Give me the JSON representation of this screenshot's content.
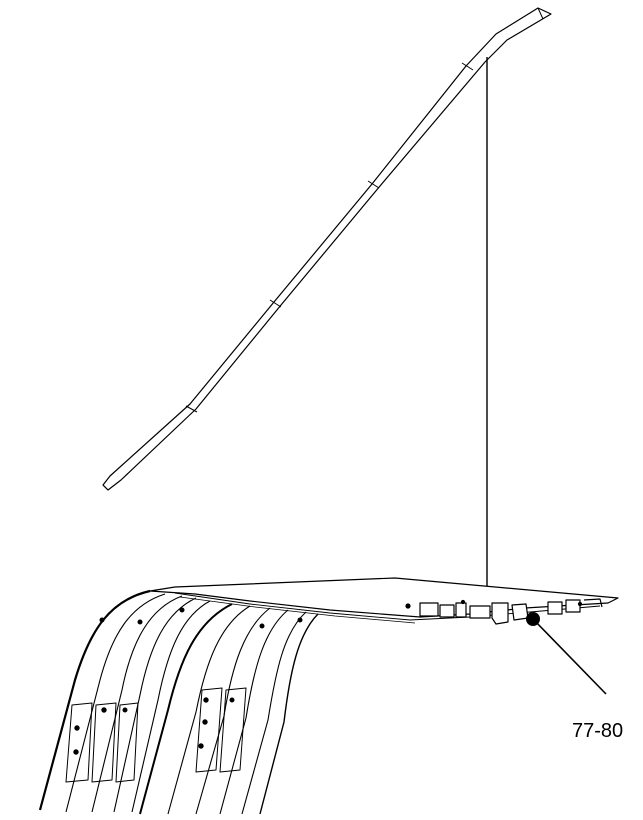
{
  "diagram": {
    "callouts": [
      {
        "label": "77-80",
        "marker": "filled-dot"
      }
    ],
    "colors": {
      "line": "#000000",
      "background": "#ffffff"
    }
  }
}
